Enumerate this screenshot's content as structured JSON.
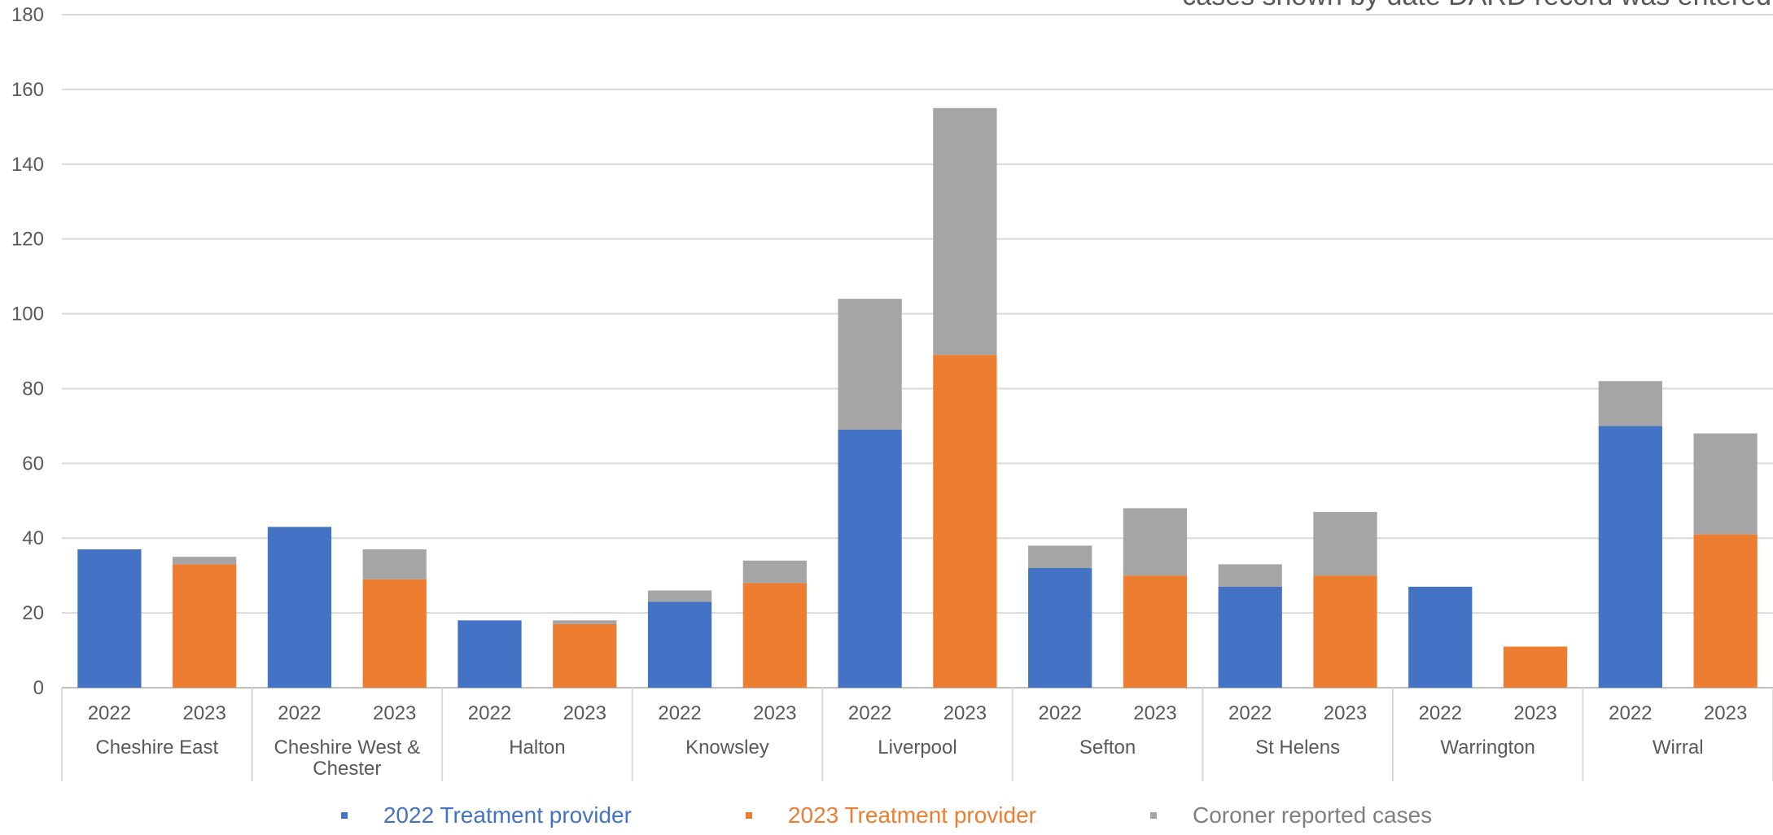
{
  "chart_data": {
    "type": "bar",
    "stacked": true,
    "title": "cases shown by date DARD record was entered",
    "ylim": [
      0,
      180
    ],
    "yticks": [
      0,
      20,
      40,
      60,
      80,
      100,
      120,
      140,
      160,
      180
    ],
    "grid": true,
    "legend_position": "bottom",
    "groups": [
      "Cheshire East",
      "Cheshire West & Chester",
      "Halton",
      "Knowsley",
      "Liverpool",
      "Sefton",
      "St Helens",
      "Warrington",
      "Wirral"
    ],
    "years": [
      "2022",
      "2023"
    ],
    "series": [
      {
        "name": "2022 Treatment provider",
        "color": "#4472C4",
        "values": [
          37,
          0,
          43,
          0,
          18,
          0,
          23,
          0,
          69,
          0,
          32,
          0,
          27,
          0,
          27,
          0,
          70,
          0
        ]
      },
      {
        "name": "2023 Treatment provider",
        "color": "#ED7D31",
        "values": [
          0,
          33,
          0,
          29,
          0,
          17,
          0,
          28,
          0,
          89,
          0,
          30,
          0,
          30,
          0,
          11,
          0,
          41
        ]
      },
      {
        "name": "Coroner reported cases",
        "color": "#A5A5A5",
        "values": [
          0,
          2,
          0,
          8,
          0,
          1,
          3,
          6,
          35,
          66,
          6,
          18,
          6,
          17,
          0,
          0,
          12,
          27
        ]
      }
    ]
  }
}
